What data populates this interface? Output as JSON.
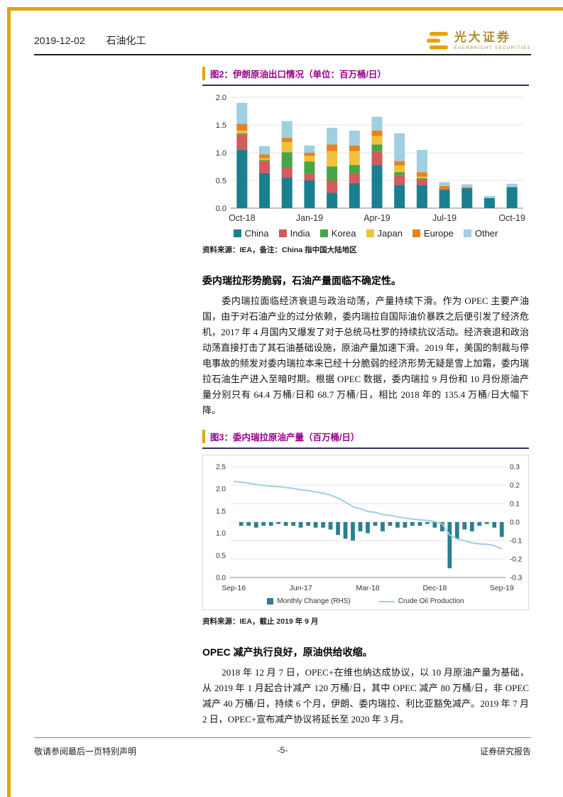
{
  "header": {
    "date": "2019-12-02",
    "industry": "石油化工",
    "brand": {
      "name": "光大证券",
      "subtitle": "EVERBRIGHT SECURITIES"
    }
  },
  "figure2": {
    "title": "图2：伊朗原油出口情况（单位：百万桶/日）",
    "source": "资料来源：IEA，备注：China 指中国大陆地区"
  },
  "figure3": {
    "title": "图3：委内瑞拉原油产量（百万桶/日）",
    "source": "资料来源：IEA，截止 2019 年 9 月"
  },
  "sections": {
    "venezuela": {
      "heading": "委内瑞拉形势脆弱，石油产量面临不确定性。",
      "body": "委内瑞拉面临经济衰退与政治动荡，产量持续下滑。作为 OPEC 主要产油国，由于对石油产业的过分依赖，委内瑞拉自国际油价暴跌之后便引发了经济危机，2017 年 4 月国内又爆发了对于总统马杜罗的持续抗议活动。经济衰退和政治动荡直接打击了其石油基础设施，原油产量加速下滑。2019 年，美国的制裁与停电事故的频发对委内瑞拉本来已经十分脆弱的经济形势无疑是雪上加霜，委内瑞拉石油生产进入至暗时期。根据 OPEC 数据，委内瑞拉 9 月份和 10 月份原油产量分别只有 64.4 万桶/日和 68.7 万桶/日，相比 2018 年的 135.4 万桶/日大幅下降。"
    },
    "opec": {
      "heading": "OPEC 减产执行良好，原油供给收缩。",
      "body": "2018 年 12 月 7 日，OPEC+在维也纳达成协议，以 10 月原油产量为基础，从 2019 年 1 月起合计减产 120 万桶/日，其中 OPEC 减产 80 万桶/日，非 OPEC 减产 40 万桶/日，持续 6 个月，伊朗、委内瑞拉、利比亚豁免减产。2019 年 7 月 2 日，OPEC+宣布减产协议将延长至 2020 年 3 月。"
    }
  },
  "footer": {
    "left": "敬请参阅最后一页特别声明",
    "page": "-5-",
    "right": "证券研究报告"
  },
  "chart_data": [
    {
      "type": "bar",
      "stacked": true,
      "title": "伊朗原油出口情况（百万桶/日）",
      "categories": [
        "Oct-18",
        "Nov-18",
        "Dec-18",
        "Jan-19",
        "Feb-19",
        "Mar-19",
        "Apr-19",
        "May-19",
        "Jun-19",
        "Jul-19",
        "Aug-19",
        "Sep-19",
        "Oct-19"
      ],
      "x_tick_indices": [
        0,
        3,
        6,
        9,
        12
      ],
      "x_tick_labels": [
        "Oct-18",
        "Jan-19",
        "Apr-19",
        "Jul-19",
        "Oct-19"
      ],
      "ylim": [
        0,
        2.0
      ],
      "yticks": [
        0.0,
        0.5,
        1.0,
        1.5,
        2.0
      ],
      "grid": true,
      "legend_position": "bottom",
      "series": [
        {
          "name": "China",
          "color": "#1A7F8E",
          "values": [
            1.05,
            0.63,
            0.55,
            0.5,
            0.28,
            0.45,
            0.78,
            0.42,
            0.42,
            0.33,
            0.36,
            0.18,
            0.38
          ]
        },
        {
          "name": "India",
          "color": "#D05C5C",
          "values": [
            0.28,
            0.22,
            0.18,
            0.12,
            0.22,
            0.18,
            0.25,
            0.18,
            0.1,
            0.02,
            0.0,
            0.0,
            0.0
          ]
        },
        {
          "name": "Korea",
          "color": "#46A546",
          "values": [
            0.02,
            0.02,
            0.28,
            0.22,
            0.25,
            0.15,
            0.12,
            0.05,
            0.02,
            0.0,
            0.0,
            0.0,
            0.0
          ]
        },
        {
          "name": "Japan",
          "color": "#F0C239",
          "values": [
            0.05,
            0.03,
            0.18,
            0.1,
            0.28,
            0.25,
            0.15,
            0.12,
            0.03,
            0.0,
            0.0,
            0.0,
            0.0
          ]
        },
        {
          "name": "Europe",
          "color": "#E8821E",
          "values": [
            0.12,
            0.07,
            0.08,
            0.06,
            0.12,
            0.1,
            0.1,
            0.08,
            0.08,
            0.05,
            0.02,
            0.0,
            0.0
          ]
        },
        {
          "name": "Other",
          "color": "#9FCFE0",
          "values": [
            0.38,
            0.15,
            0.3,
            0.13,
            0.3,
            0.27,
            0.25,
            0.5,
            0.4,
            0.07,
            0.05,
            0.04,
            0.06
          ]
        }
      ]
    },
    {
      "type": "combo",
      "title": "委内瑞拉原油产量（百万桶/日）",
      "x": [
        "Sep-16",
        "Oct-16",
        "Nov-16",
        "Dec-16",
        "Jan-17",
        "Feb-17",
        "Mar-17",
        "Apr-17",
        "May-17",
        "Jun-17",
        "Jul-17",
        "Aug-17",
        "Sep-17",
        "Oct-17",
        "Nov-17",
        "Dec-17",
        "Jan-18",
        "Feb-18",
        "Mar-18",
        "Apr-18",
        "May-18",
        "Jun-18",
        "Jul-18",
        "Aug-18",
        "Sep-18",
        "Oct-18",
        "Nov-18",
        "Dec-18",
        "Jan-19",
        "Feb-19",
        "Mar-19",
        "Apr-19",
        "May-19",
        "Jun-19",
        "Jul-19",
        "Aug-19",
        "Sep-19"
      ],
      "x_tick_indices": [
        0,
        9,
        18,
        27,
        36
      ],
      "x_tick_labels": [
        "Sep-16",
        "Jun-17",
        "Mar-18",
        "Dec-18",
        "Sep-19"
      ],
      "left_ylim": [
        0,
        2.5
      ],
      "left_yticks": [
        0.0,
        0.5,
        1.0,
        1.5,
        2.0,
        2.5
      ],
      "right_ylim": [
        -0.3,
        0.3
      ],
      "right_yticks": [
        -0.3,
        -0.2,
        -0.1,
        0.0,
        0.1,
        0.2,
        0.3
      ],
      "grid": true,
      "legend_position": "bottom",
      "line_series": {
        "name": "Crude Oil Production",
        "axis": "left",
        "color": "#9FD0E0",
        "values": [
          2.17,
          2.15,
          2.13,
          2.1,
          2.08,
          2.06,
          2.05,
          2.03,
          2.01,
          1.98,
          1.96,
          1.93,
          1.9,
          1.86,
          1.79,
          1.7,
          1.6,
          1.55,
          1.49,
          1.47,
          1.42,
          1.4,
          1.37,
          1.34,
          1.32,
          1.3,
          1.29,
          1.26,
          1.21,
          0.96,
          0.87,
          0.83,
          0.78,
          0.76,
          0.75,
          0.72,
          0.64
        ]
      },
      "bar_series": {
        "name": "Monthly Change (RHS)",
        "axis": "right",
        "color": "#2B7F91",
        "values": [
          null,
          -0.02,
          -0.02,
          -0.03,
          -0.02,
          -0.02,
          -0.01,
          -0.02,
          -0.02,
          -0.03,
          -0.02,
          -0.03,
          -0.03,
          -0.04,
          -0.07,
          -0.09,
          -0.1,
          -0.05,
          -0.06,
          -0.02,
          -0.05,
          -0.02,
          -0.03,
          -0.03,
          -0.02,
          -0.02,
          -0.01,
          -0.03,
          -0.05,
          -0.25,
          -0.09,
          -0.04,
          -0.05,
          -0.02,
          -0.01,
          -0.03,
          -0.08
        ]
      }
    }
  ]
}
